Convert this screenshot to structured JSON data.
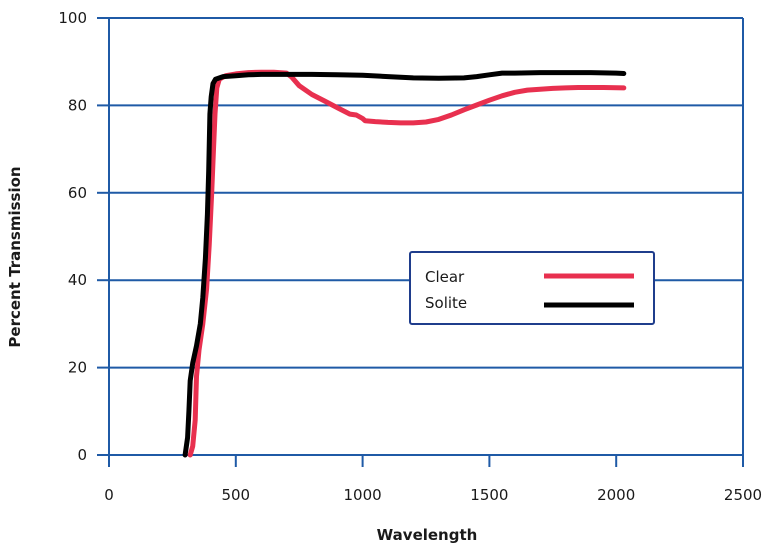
{
  "chart_data": {
    "type": "line",
    "title": "",
    "xlabel": "Wavelength",
    "ylabel": "Percent Transmission",
    "xlim": [
      0,
      2500
    ],
    "ylim": [
      0,
      100
    ],
    "x_ticks": [
      0,
      500,
      1000,
      1500,
      2000,
      2500
    ],
    "y_ticks": [
      0,
      20,
      40,
      60,
      80,
      100
    ],
    "grid": "horizontal",
    "legend_position": "center-right",
    "colors": {
      "axis": "#1f5aa6",
      "grid": "#1f5aa6"
    },
    "series": [
      {
        "name": "Clear",
        "color": "#e8304f",
        "points": [
          [
            320,
            0
          ],
          [
            330,
            2
          ],
          [
            340,
            8
          ],
          [
            345,
            18
          ],
          [
            355,
            24
          ],
          [
            370,
            30
          ],
          [
            385,
            38
          ],
          [
            395,
            48
          ],
          [
            405,
            60
          ],
          [
            412,
            70
          ],
          [
            418,
            78
          ],
          [
            425,
            84
          ],
          [
            435,
            86
          ],
          [
            460,
            86.8
          ],
          [
            500,
            87.2
          ],
          [
            550,
            87.5
          ],
          [
            600,
            87.6
          ],
          [
            650,
            87.6
          ],
          [
            700,
            87.4
          ],
          [
            720,
            86.5
          ],
          [
            750,
            84.5
          ],
          [
            800,
            82.5
          ],
          [
            850,
            81
          ],
          [
            900,
            79.5
          ],
          [
            950,
            78
          ],
          [
            975,
            77.8
          ],
          [
            1000,
            77
          ],
          [
            1010,
            76.5
          ],
          [
            1050,
            76.3
          ],
          [
            1100,
            76.1
          ],
          [
            1150,
            76
          ],
          [
            1200,
            76
          ],
          [
            1250,
            76.2
          ],
          [
            1300,
            76.8
          ],
          [
            1350,
            77.8
          ],
          [
            1400,
            79
          ],
          [
            1450,
            80.1
          ],
          [
            1500,
            81.2
          ],
          [
            1550,
            82.2
          ],
          [
            1600,
            83
          ],
          [
            1650,
            83.5
          ],
          [
            1700,
            83.7
          ],
          [
            1750,
            83.9
          ],
          [
            1800,
            84
          ],
          [
            1850,
            84.1
          ],
          [
            1900,
            84.1
          ],
          [
            1950,
            84.1
          ],
          [
            2030,
            84
          ]
        ]
      },
      {
        "name": "Solite",
        "color": "#000000",
        "points": [
          [
            300,
            0
          ],
          [
            310,
            4
          ],
          [
            315,
            10
          ],
          [
            320,
            17
          ],
          [
            330,
            21
          ],
          [
            345,
            25
          ],
          [
            360,
            30
          ],
          [
            370,
            36
          ],
          [
            380,
            45
          ],
          [
            388,
            55
          ],
          [
            393,
            65
          ],
          [
            398,
            78
          ],
          [
            403,
            82
          ],
          [
            410,
            85
          ],
          [
            420,
            86
          ],
          [
            450,
            86.6
          ],
          [
            500,
            86.8
          ],
          [
            550,
            87
          ],
          [
            600,
            87.1
          ],
          [
            700,
            87.1
          ],
          [
            800,
            87.1
          ],
          [
            900,
            87
          ],
          [
            1000,
            86.9
          ],
          [
            1100,
            86.6
          ],
          [
            1200,
            86.3
          ],
          [
            1300,
            86.2
          ],
          [
            1400,
            86.3
          ],
          [
            1450,
            86.6
          ],
          [
            1500,
            87
          ],
          [
            1550,
            87.4
          ],
          [
            1600,
            87.4
          ],
          [
            1700,
            87.5
          ],
          [
            1800,
            87.5
          ],
          [
            1900,
            87.5
          ],
          [
            2000,
            87.4
          ],
          [
            2030,
            87.3
          ]
        ]
      }
    ]
  }
}
